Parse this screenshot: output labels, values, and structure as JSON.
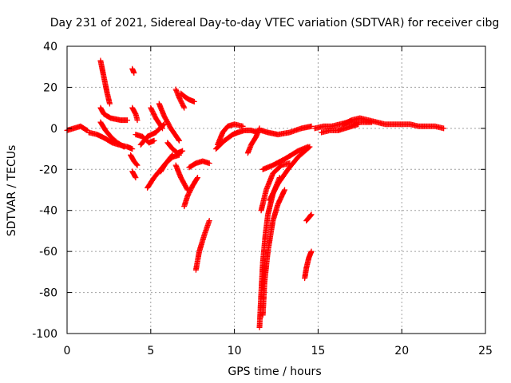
{
  "chart_data": {
    "type": "scatter",
    "title": "Day 231 of 2021, Sidereal Day-to-day VTEC variation (SDTVAR) for receiver cibg",
    "xlabel": "GPS time / hours",
    "ylabel": "SDTVAR / TECUs",
    "xlim": [
      0,
      25
    ],
    "ylim": [
      -100,
      40
    ],
    "xticks": [
      0,
      5,
      10,
      15,
      20,
      25
    ],
    "yticks": [
      -100,
      -80,
      -60,
      -40,
      -20,
      0,
      20,
      40
    ],
    "grid": true,
    "marker": "plus",
    "color": "#ff0000",
    "x_tick_labels": [
      "0",
      "5",
      "10",
      "15",
      "20",
      "25"
    ],
    "y_tick_labels": [
      "-100",
      "-80",
      "-60",
      "-40",
      "-20",
      "0",
      "20",
      "40"
    ],
    "segments": [
      {
        "x": [
          0.0,
          0.4,
          0.8,
          1.2
        ],
        "y": [
          -1,
          0,
          1,
          -1
        ]
      },
      {
        "x": [
          1.3,
          1.8,
          2.3,
          2.7,
          3.1,
          3.6,
          3.9
        ],
        "y": [
          -2,
          -3,
          -5,
          -7,
          -8,
          -9,
          -10
        ]
      },
      {
        "x": [
          2.0,
          2.2,
          2.4,
          2.55
        ],
        "y": [
          33,
          25,
          17,
          12
        ]
      },
      {
        "x": [
          2.0,
          2.2,
          2.6,
          3.2,
          3.6
        ],
        "y": [
          10,
          7,
          5,
          4,
          4
        ]
      },
      {
        "x": [
          2.0,
          2.3,
          2.6,
          3.0,
          3.4
        ],
        "y": [
          3,
          -1,
          -4,
          -7,
          -9
        ]
      },
      {
        "x": [
          3.9,
          4.0
        ],
        "y": [
          29,
          27
        ]
      },
      {
        "x": [
          3.9,
          4.1,
          4.2
        ],
        "y": [
          10,
          7,
          4
        ]
      },
      {
        "x": [
          3.8,
          4.0,
          4.2
        ],
        "y": [
          -13,
          -16,
          -18
        ]
      },
      {
        "x": [
          3.9,
          4.1
        ],
        "y": [
          -21,
          -24
        ]
      },
      {
        "x": [
          4.1,
          4.5,
          4.9,
          5.2
        ],
        "y": [
          -3,
          -4,
          -7,
          -6
        ]
      },
      {
        "x": [
          4.4,
          4.8,
          5.3,
          5.8
        ],
        "y": [
          -8,
          -4,
          -2,
          2
        ]
      },
      {
        "x": [
          4.8,
          5.2,
          5.8,
          6.3
        ],
        "y": [
          -29,
          -24,
          -18,
          -13
        ]
      },
      {
        "x": [
          5.0,
          5.3,
          5.7
        ],
        "y": [
          10,
          5,
          0
        ]
      },
      {
        "x": [
          5.5,
          5.8,
          6.2,
          6.7
        ],
        "y": [
          12,
          6,
          0,
          -6
        ]
      },
      {
        "x": [
          5.6,
          5.9,
          6.3,
          6.7
        ],
        "y": [
          -21,
          -17,
          -14,
          -13
        ]
      },
      {
        "x": [
          6.0,
          6.3,
          6.6,
          6.9
        ],
        "y": [
          -7,
          -10,
          -12,
          -11
        ]
      },
      {
        "x": [
          6.5,
          6.7,
          7.0
        ],
        "y": [
          19,
          15,
          10
        ]
      },
      {
        "x": [
          6.5,
          6.8,
          7.2
        ],
        "y": [
          -18,
          -24,
          -30
        ]
      },
      {
        "x": [
          6.8,
          7.1,
          7.3,
          7.6
        ],
        "y": [
          17,
          15,
          14,
          13
        ]
      },
      {
        "x": [
          7.0,
          7.2,
          7.5,
          7.8
        ],
        "y": [
          -38,
          -33,
          -28,
          -24
        ]
      },
      {
        "x": [
          7.3,
          7.7,
          8.1,
          8.5
        ],
        "y": [
          -19,
          -17,
          -16,
          -17
        ]
      },
      {
        "x": [
          7.7,
          7.9,
          8.2,
          8.5
        ],
        "y": [
          -69,
          -60,
          -52,
          -45
        ]
      },
      {
        "x": [
          8.9,
          9.4,
          9.9,
          10.2
        ],
        "y": [
          -10,
          -6,
          -3,
          -2
        ]
      },
      {
        "x": [
          9.0,
          9.3,
          9.6,
          10.0,
          10.5
        ],
        "y": [
          -8,
          -2,
          1,
          2,
          1
        ]
      },
      {
        "x": [
          10.2,
          10.6,
          11.0,
          11.4
        ],
        "y": [
          -2,
          -1,
          -1,
          -2
        ]
      },
      {
        "x": [
          10.8,
          11.0,
          11.3,
          11.5
        ],
        "y": [
          -12,
          -8,
          -4,
          0
        ]
      },
      {
        "x": [
          11.6,
          12.0,
          12.6,
          13.3,
          14.0,
          14.6
        ],
        "y": [
          -1,
          -2,
          -3,
          -2,
          0,
          1
        ]
      },
      {
        "x": [
          11.5,
          11.6,
          11.7,
          11.85,
          12.0,
          12.3,
          12.7
        ],
        "y": [
          -97,
          -80,
          -65,
          -52,
          -42,
          -32,
          -24
        ]
      },
      {
        "x": [
          11.7,
          11.8,
          12.0,
          12.3,
          12.6,
          13.0
        ],
        "y": [
          -91,
          -75,
          -60,
          -45,
          -37,
          -30
        ]
      },
      {
        "x": [
          11.6,
          11.9,
          12.3,
          12.8,
          13.3
        ],
        "y": [
          -40,
          -30,
          -22,
          -18,
          -17
        ]
      },
      {
        "x": [
          12.1,
          12.6,
          13.2,
          13.8,
          14.5
        ],
        "y": [
          -35,
          -27,
          -20,
          -14,
          -9
        ]
      },
      {
        "x": [
          11.7,
          12.3,
          13.0,
          13.8,
          14.4
        ],
        "y": [
          -20,
          -18,
          -15,
          -11,
          -9
        ]
      },
      {
        "x": [
          14.2,
          14.3,
          14.45,
          14.6
        ],
        "y": [
          -73,
          -68,
          -63,
          -60
        ]
      },
      {
        "x": [
          14.3,
          14.5,
          14.6
        ],
        "y": [
          -45,
          -43,
          -42
        ]
      },
      {
        "x": [
          14.8,
          15.3,
          15.8,
          16.3,
          16.8,
          17.3,
          17.8,
          18.2
        ],
        "y": [
          0,
          1,
          1,
          2,
          3,
          3,
          3,
          3
        ]
      },
      {
        "x": [
          15.2,
          15.7,
          16.2,
          16.6,
          17.0,
          17.4
        ],
        "y": [
          -2,
          -1,
          -1,
          0,
          1,
          2
        ]
      },
      {
        "x": [
          16.5,
          17.0,
          17.5,
          18.0,
          18.5,
          19.0,
          19.5,
          20.0,
          20.5,
          21.0,
          21.5,
          22.0,
          22.5
        ],
        "y": [
          2,
          4,
          5,
          4,
          3,
          2,
          2,
          2,
          2,
          1,
          1,
          1,
          0
        ]
      }
    ]
  }
}
